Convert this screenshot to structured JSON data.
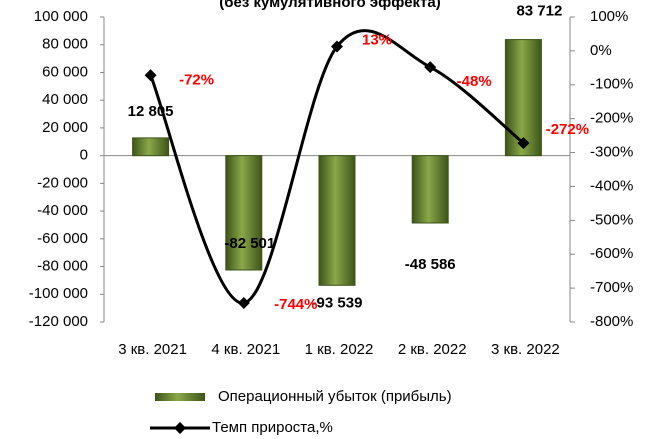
{
  "chart_data": {
    "type": "bar+line",
    "title": "(без кумулятивного эффекта)",
    "categories": [
      "3 кв. 2021",
      "4 кв. 2021",
      "1 кв. 2022",
      "2 кв. 2022",
      "3 кв. 2022"
    ],
    "series": [
      {
        "name": "Операционный убыток (прибыль)",
        "type": "bar",
        "color": "#5b7a2b",
        "values": [
          12805,
          -82501,
          -93539,
          -48586,
          83712
        ],
        "value_labels": [
          "12 805",
          "-82 501",
          "-93 539",
          "-48 586",
          "83 712"
        ]
      },
      {
        "name": "Темп прироста,%",
        "type": "line",
        "axis": "y2",
        "color": "#000000",
        "label_color": "#ff0000",
        "values": [
          -72,
          -744,
          13,
          -48,
          -272
        ],
        "value_labels": [
          "-72%",
          "-744%",
          "13%",
          "-48%",
          "-272%"
        ]
      }
    ],
    "ylim": [
      -120000,
      100000
    ],
    "yticks": [
      {
        "value": 100000,
        "label": "100 000"
      },
      {
        "value": 80000,
        "label": "80 000"
      },
      {
        "value": 60000,
        "label": "60 000"
      },
      {
        "value": 40000,
        "label": "40 000"
      },
      {
        "value": 20000,
        "label": "20 000"
      },
      0,
      {
        "value": -20000,
        "label": "-20 000"
      },
      {
        "value": -40000,
        "label": "-40 000"
      },
      {
        "value": -60000,
        "label": "-60 000"
      },
      {
        "value": -80000,
        "label": "-80 000"
      },
      {
        "value": -100000,
        "label": "-100 000"
      },
      {
        "value": -120000,
        "label": "-120 000"
      }
    ],
    "y2lim": [
      -800,
      100
    ],
    "y2ticks": [
      {
        "value": 100,
        "label": "100%"
      },
      {
        "value": 0,
        "label": "0%"
      },
      {
        "value": -100,
        "label": "-100%"
      },
      {
        "value": -200,
        "label": "-200%"
      },
      {
        "value": -300,
        "label": "-300%"
      },
      {
        "value": -400,
        "label": "-400%"
      },
      {
        "value": -500,
        "label": "-500%"
      },
      {
        "value": -600,
        "label": "-600%"
      },
      {
        "value": -700,
        "label": "-700%"
      },
      {
        "value": -800,
        "label": "-800%"
      }
    ],
    "grid": false,
    "legend": "bottom"
  }
}
